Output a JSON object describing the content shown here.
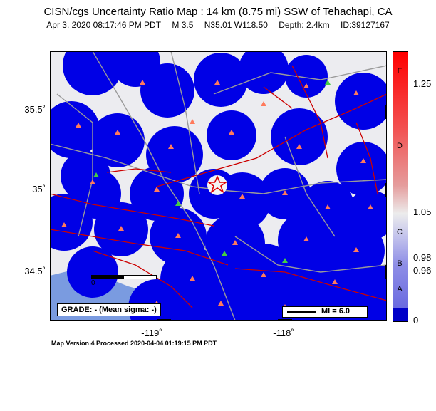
{
  "title": "CISN/cgs Uncertainty Ratio Map : 14 km (8.75 mi) SSW of Tehachapi, CA",
  "subtitle": {
    "datetime": "Apr  3, 2020 08:17:46 PM PDT",
    "magnitude": "M 3.5",
    "location": "N35.01 W118.50",
    "depth": "Depth: 2.4km",
    "id": "ID:39127167"
  },
  "axes": {
    "lat_labels": [
      "35.5˚",
      "35˚",
      "34.5˚"
    ],
    "lon_labels": [
      "-119˚",
      "-118˚"
    ]
  },
  "legend": {
    "grade": "GRADE: - (Mean sigma: -)",
    "mi": "MI = 6.0",
    "scale_zero": "0"
  },
  "colorbar": {
    "grades": [
      "F",
      "D",
      "C",
      "B",
      "A"
    ],
    "values": [
      "1.25",
      "1.05",
      "0.98",
      "0.96",
      "0"
    ]
  },
  "footer": "Map Version 4 Processed 2020-04-04 01:19:15 PM PDT",
  "colors": {
    "coverage": "#0000e6",
    "background": "#ececf0",
    "station": "#ff7a5c",
    "fault": "#cc0000"
  }
}
